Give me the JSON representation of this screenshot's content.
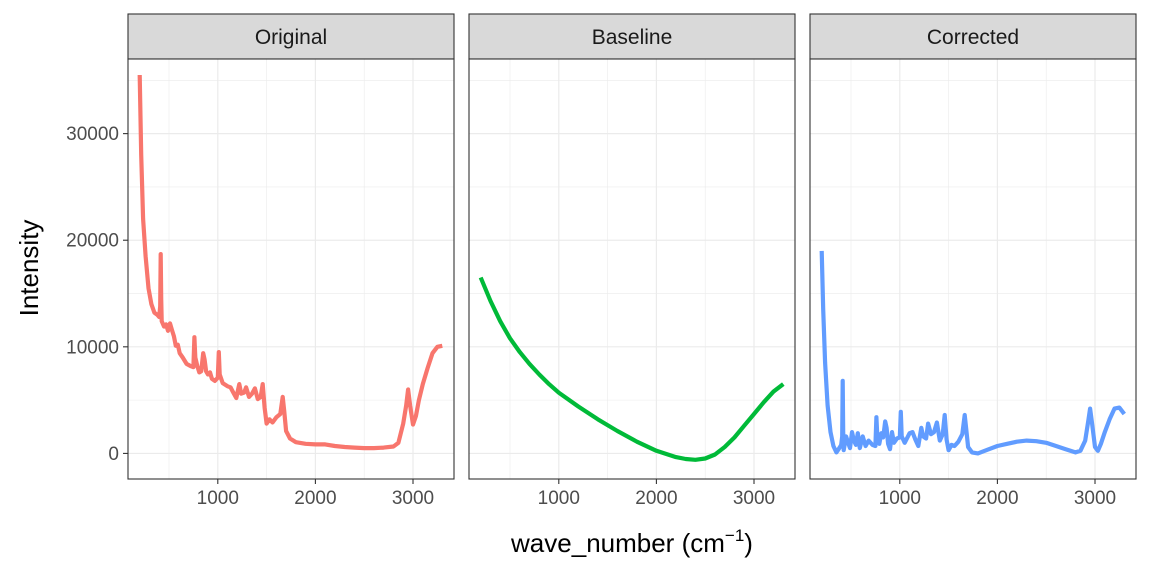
{
  "chart_data": {
    "type": "line",
    "facets": [
      "Original",
      "Baseline",
      "Corrected"
    ],
    "xlabel": {
      "main": "wave_number (cm",
      "sup": "−1",
      "close": ")"
    },
    "ylabel": "Intensity",
    "xlim": [
      80,
      3420
    ],
    "ylim": [
      -2400,
      37000
    ],
    "x_ticks": [
      1000,
      2000,
      3000
    ],
    "x_tick_labels": [
      "1000",
      "2000",
      "3000"
    ],
    "y_ticks": [
      0,
      10000,
      20000,
      30000
    ],
    "y_tick_labels": [
      "0",
      "10000",
      "20000",
      "30000"
    ],
    "grid": true,
    "legend": "none",
    "series": [
      {
        "colour": "#F8766D",
        "points": [
          [
            200,
            35500
          ],
          [
            215,
            28000
          ],
          [
            235,
            22000
          ],
          [
            260,
            18500
          ],
          [
            290,
            15500
          ],
          [
            320,
            14000
          ],
          [
            350,
            13200
          ],
          [
            380,
            13000
          ],
          [
            400,
            12800
          ],
          [
            410,
            13800
          ],
          [
            415,
            18700
          ],
          [
            420,
            14500
          ],
          [
            425,
            12400
          ],
          [
            450,
            11900
          ],
          [
            470,
            12100
          ],
          [
            490,
            11500
          ],
          [
            510,
            12200
          ],
          [
            530,
            11600
          ],
          [
            550,
            11000
          ],
          [
            570,
            10100
          ],
          [
            590,
            10200
          ],
          [
            610,
            9400
          ],
          [
            640,
            9000
          ],
          [
            680,
            8400
          ],
          [
            720,
            8200
          ],
          [
            750,
            8100
          ],
          [
            760,
            10900
          ],
          [
            770,
            9000
          ],
          [
            790,
            8200
          ],
          [
            810,
            7600
          ],
          [
            830,
            7700
          ],
          [
            850,
            9400
          ],
          [
            865,
            8800
          ],
          [
            880,
            7700
          ],
          [
            900,
            7400
          ],
          [
            920,
            7600
          ],
          [
            940,
            7000
          ],
          [
            970,
            6800
          ],
          [
            1000,
            7100
          ],
          [
            1010,
            9500
          ],
          [
            1020,
            7400
          ],
          [
            1050,
            6600
          ],
          [
            1100,
            6300
          ],
          [
            1130,
            6200
          ],
          [
            1160,
            5700
          ],
          [
            1190,
            5200
          ],
          [
            1220,
            6500
          ],
          [
            1240,
            5600
          ],
          [
            1270,
            5700
          ],
          [
            1290,
            6200
          ],
          [
            1320,
            5300
          ],
          [
            1350,
            5600
          ],
          [
            1380,
            6100
          ],
          [
            1410,
            5100
          ],
          [
            1440,
            5300
          ],
          [
            1460,
            6500
          ],
          [
            1480,
            4300
          ],
          [
            1500,
            2800
          ],
          [
            1530,
            3200
          ],
          [
            1560,
            2900
          ],
          [
            1600,
            3400
          ],
          [
            1640,
            3700
          ],
          [
            1665,
            5300
          ],
          [
            1680,
            4000
          ],
          [
            1700,
            2100
          ],
          [
            1740,
            1400
          ],
          [
            1800,
            1050
          ],
          [
            1900,
            900
          ],
          [
            2000,
            850
          ],
          [
            2100,
            850
          ],
          [
            2200,
            700
          ],
          [
            2300,
            600
          ],
          [
            2400,
            550
          ],
          [
            2500,
            500
          ],
          [
            2600,
            500
          ],
          [
            2700,
            550
          ],
          [
            2800,
            650
          ],
          [
            2850,
            1000
          ],
          [
            2900,
            2800
          ],
          [
            2930,
            4500
          ],
          [
            2950,
            6000
          ],
          [
            2970,
            4500
          ],
          [
            3000,
            2700
          ],
          [
            3030,
            3500
          ],
          [
            3060,
            5000
          ],
          [
            3100,
            6500
          ],
          [
            3150,
            8000
          ],
          [
            3200,
            9400
          ],
          [
            3250,
            10000
          ],
          [
            3300,
            10100
          ]
        ]
      },
      {
        "colour": "#00BA38",
        "points": [
          [
            200,
            16500
          ],
          [
            300,
            14300
          ],
          [
            400,
            12400
          ],
          [
            500,
            10800
          ],
          [
            600,
            9500
          ],
          [
            700,
            8400
          ],
          [
            800,
            7400
          ],
          [
            900,
            6500
          ],
          [
            1000,
            5700
          ],
          [
            1200,
            4400
          ],
          [
            1400,
            3200
          ],
          [
            1600,
            2100
          ],
          [
            1800,
            1100
          ],
          [
            2000,
            250
          ],
          [
            2200,
            -350
          ],
          [
            2300,
            -520
          ],
          [
            2400,
            -600
          ],
          [
            2500,
            -480
          ],
          [
            2600,
            -100
          ],
          [
            2700,
            600
          ],
          [
            2800,
            1500
          ],
          [
            2900,
            2600
          ],
          [
            3000,
            3700
          ],
          [
            3100,
            4800
          ],
          [
            3200,
            5800
          ],
          [
            3300,
            6500
          ]
        ]
      },
      {
        "colour": "#619CFF",
        "points": [
          [
            200,
            19000
          ],
          [
            215,
            13500
          ],
          [
            235,
            8500
          ],
          [
            260,
            4500
          ],
          [
            290,
            2000
          ],
          [
            320,
            700
          ],
          [
            350,
            100
          ],
          [
            380,
            500
          ],
          [
            400,
            800
          ],
          [
            410,
            1600
          ],
          [
            415,
            6800
          ],
          [
            420,
            2000
          ],
          [
            425,
            300
          ],
          [
            450,
            1600
          ],
          [
            470,
            1000
          ],
          [
            490,
            500
          ],
          [
            510,
            2000
          ],
          [
            530,
            1200
          ],
          [
            550,
            800
          ],
          [
            570,
            1900
          ],
          [
            590,
            500
          ],
          [
            620,
            1600
          ],
          [
            650,
            700
          ],
          [
            680,
            1200
          ],
          [
            720,
            800
          ],
          [
            750,
            700
          ],
          [
            760,
            3400
          ],
          [
            770,
            1600
          ],
          [
            790,
            900
          ],
          [
            810,
            1900
          ],
          [
            830,
            1500
          ],
          [
            850,
            3000
          ],
          [
            865,
            2400
          ],
          [
            880,
            900
          ],
          [
            900,
            400
          ],
          [
            920,
            2000
          ],
          [
            940,
            1000
          ],
          [
            970,
            1400
          ],
          [
            1000,
            1500
          ],
          [
            1010,
            3900
          ],
          [
            1020,
            1600
          ],
          [
            1050,
            1000
          ],
          [
            1100,
            1900
          ],
          [
            1130,
            2000
          ],
          [
            1160,
            1300
          ],
          [
            1190,
            700
          ],
          [
            1220,
            2400
          ],
          [
            1240,
            1600
          ],
          [
            1270,
            1400
          ],
          [
            1290,
            2800
          ],
          [
            1320,
            1800
          ],
          [
            1350,
            2000
          ],
          [
            1380,
            2900
          ],
          [
            1410,
            1200
          ],
          [
            1440,
            1800
          ],
          [
            1460,
            3600
          ],
          [
            1480,
            1300
          ],
          [
            1500,
            300
          ],
          [
            1530,
            800
          ],
          [
            1560,
            700
          ],
          [
            1600,
            1100
          ],
          [
            1640,
            1800
          ],
          [
            1665,
            3600
          ],
          [
            1680,
            2300
          ],
          [
            1700,
            600
          ],
          [
            1740,
            100
          ],
          [
            1800,
            0
          ],
          [
            1900,
            350
          ],
          [
            2000,
            700
          ],
          [
            2100,
            900
          ],
          [
            2200,
            1100
          ],
          [
            2300,
            1200
          ],
          [
            2400,
            1150
          ],
          [
            2500,
            1000
          ],
          [
            2600,
            700
          ],
          [
            2700,
            400
          ],
          [
            2800,
            100
          ],
          [
            2850,
            250
          ],
          [
            2900,
            1200
          ],
          [
            2930,
            3000
          ],
          [
            2950,
            4200
          ],
          [
            2970,
            2800
          ],
          [
            3000,
            600
          ],
          [
            3030,
            250
          ],
          [
            3060,
            900
          ],
          [
            3100,
            2000
          ],
          [
            3150,
            3200
          ],
          [
            3200,
            4200
          ],
          [
            3250,
            4300
          ],
          [
            3300,
            3700
          ]
        ]
      }
    ]
  }
}
